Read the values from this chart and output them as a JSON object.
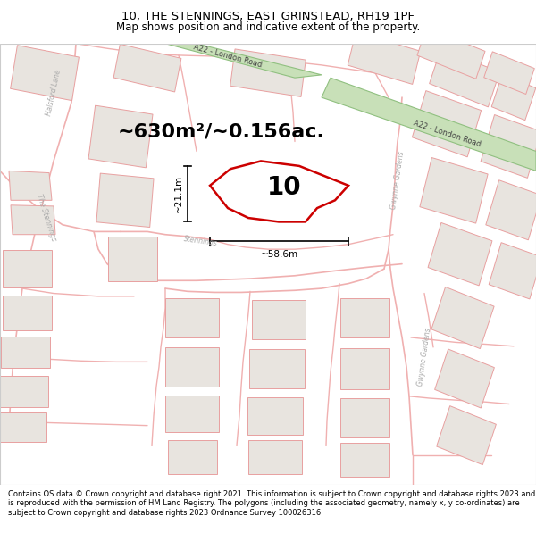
{
  "title": "10, THE STENNINGS, EAST GRINSTEAD, RH19 1PF",
  "subtitle": "Map shows position and indicative extent of the property.",
  "area_label": "~630m²/~0.156ac.",
  "plot_number": "10",
  "width_label": "~58.6m",
  "height_label": "~21.1m",
  "footer": "Contains OS data © Crown copyright and database right 2021. This information is subject to Crown copyright and database rights 2023 and is reproduced with the permission of HM Land Registry. The polygons (including the associated geometry, namely x, y co-ordinates) are subject to Crown copyright and database rights 2023 Ordnance Survey 100026316.",
  "bg_color": "#ffffff",
  "map_bg": "#f5f0ed",
  "plot_fill": "#ffffff",
  "plot_edge": "#cc0000",
  "road_green_fill": "#c8e0b8",
  "road_green_edge": "#90c080",
  "building_fill": "#e8e4df",
  "building_stroke": "#e8a0a0",
  "road_line_color": "#f0b0b0",
  "street_label_color": "#999999",
  "dim_color": "#111111",
  "title_fontsize": 9.5,
  "subtitle_fontsize": 8.5,
  "area_fontsize": 16,
  "plot_num_fontsize": 20,
  "footer_fontsize": 6.0
}
